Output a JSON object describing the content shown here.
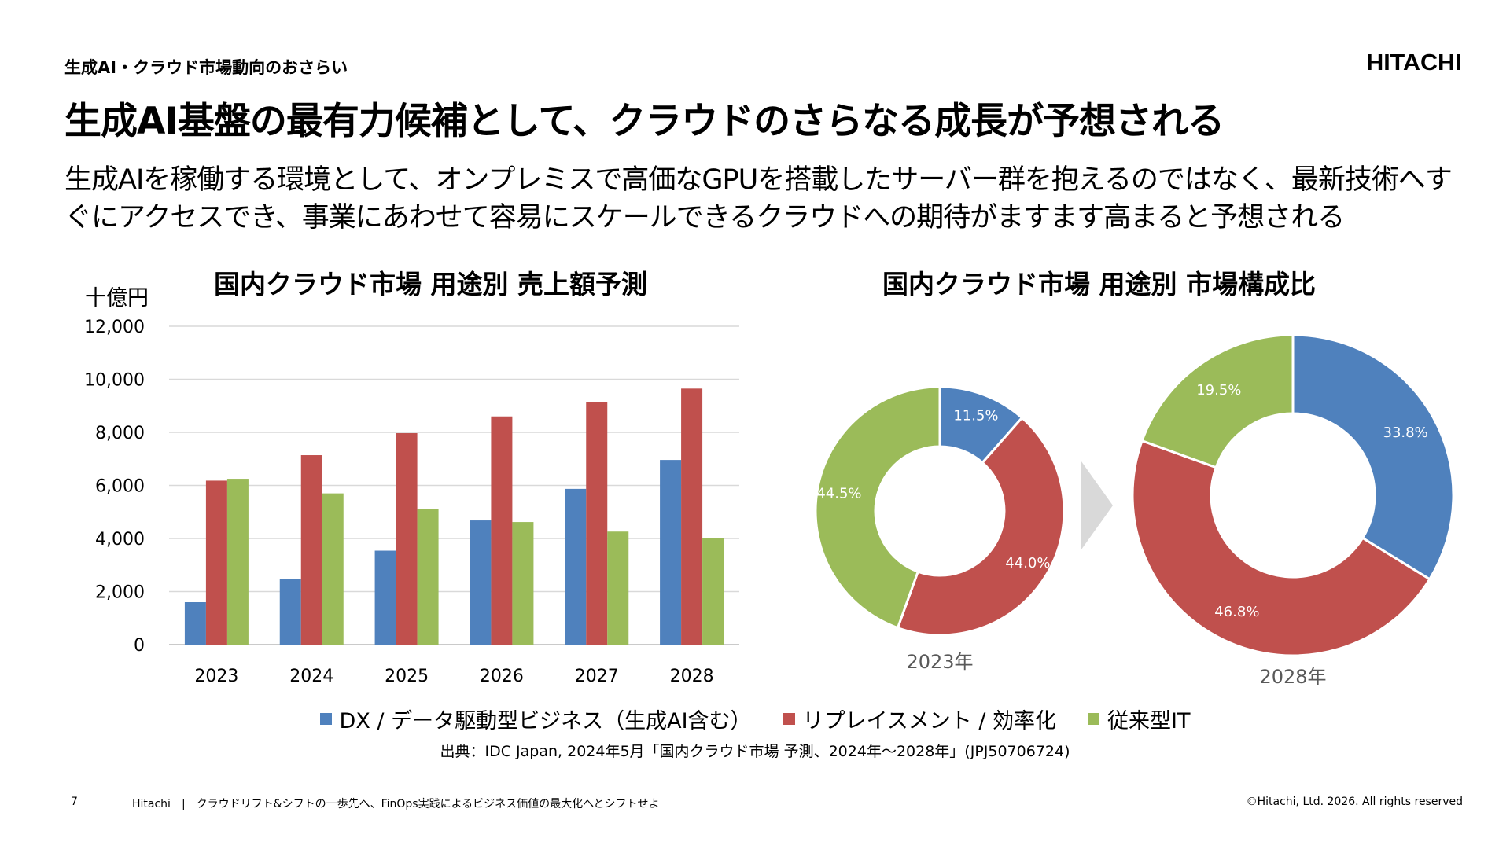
{
  "header": {
    "section_label": "生成AI・クラウド市場動向のおさらい",
    "logo": "HITACHI",
    "title": "生成AI基盤の最有力候補として、クラウドのさらなる成長が予想される",
    "lead": "生成AIを稼働する環境として、オンプレミスで高価なGPUを搭載したサーバー群を抱えるのではなく、最新技術へすぐにアクセスでき、事業にあわせて容易にスケールできるクラウドへの期待がますます高まると予想される"
  },
  "colors": {
    "dx": "#4F81BD",
    "replace": "#C0504D",
    "legacy": "#9BBB59",
    "arrow": "#D9D9D9"
  },
  "chart_data": [
    {
      "type": "bar",
      "title": "国内クラウド市場 用途別 売上額予測",
      "ylabel": "十億円",
      "xlabel": "",
      "categories": [
        "2023",
        "2024",
        "2025",
        "2026",
        "2027",
        "2028"
      ],
      "ylim": [
        0,
        12000
      ],
      "yticks": [
        0,
        2000,
        4000,
        6000,
        8000,
        10000,
        12000
      ],
      "ytick_labels": [
        "0",
        "2,000",
        "4,000",
        "6,000",
        "8,000",
        "10,000",
        "12,000"
      ],
      "grid": true,
      "series": [
        {
          "name": "DX / データ駆動型ビジネス（生成AI含む）",
          "color_key": "dx",
          "values": [
            1600,
            2480,
            3540,
            4680,
            5870,
            6960
          ]
        },
        {
          "name": "リプレイスメント / 効率化",
          "color_key": "replace",
          "values": [
            6180,
            7140,
            7970,
            8600,
            9150,
            9650
          ]
        },
        {
          "name": "従来型IT",
          "color_key": "legacy",
          "values": [
            6250,
            5700,
            5100,
            4620,
            4260,
            4000
          ]
        }
      ]
    },
    {
      "type": "pie",
      "title": "国内クラウド市場 用途別 市場構成比",
      "donuts": [
        {
          "label": "2023年",
          "slices": [
            {
              "name": "DX / データ駆動型ビジネス（生成AI含む）",
              "color_key": "dx",
              "value": 11.5,
              "label": "11.5%"
            },
            {
              "name": "リプレイスメント / 効率化",
              "color_key": "replace",
              "value": 44.0,
              "label": "44.0%"
            },
            {
              "name": "従来型IT",
              "color_key": "legacy",
              "value": 44.5,
              "label": "44.5%"
            }
          ]
        },
        {
          "label": "2028年",
          "slices": [
            {
              "name": "DX / データ駆動型ビジネス（生成AI含む）",
              "color_key": "dx",
              "value": 33.8,
              "label": "33.8%"
            },
            {
              "name": "リプレイスメント / 効率化",
              "color_key": "replace",
              "value": 46.8,
              "label": "46.8%"
            },
            {
              "name": "従来型IT",
              "color_key": "legacy",
              "value": 19.5,
              "label": "19.5%"
            }
          ]
        }
      ]
    }
  ],
  "legend": [
    {
      "label": "DX / データ駆動型ビジネス（生成AI含む）",
      "color_key": "dx"
    },
    {
      "label": "リプレイスメント / 効率化",
      "color_key": "replace"
    },
    {
      "label": "従来型IT",
      "color_key": "legacy"
    }
  ],
  "source": "出典：IDC Japan, 2024年5月「国内クラウド市場 予測、2024年～2028年」(JPJ50706724)",
  "footer": {
    "page_number": "7",
    "text": "Hitachi　|　クラウドリフト&シフトの一歩先へ、FinOps実践によるビジネス価値の最大化へとシフトせよ",
    "copyright": "©Hitachi, Ltd. 2026. All rights reserved"
  }
}
